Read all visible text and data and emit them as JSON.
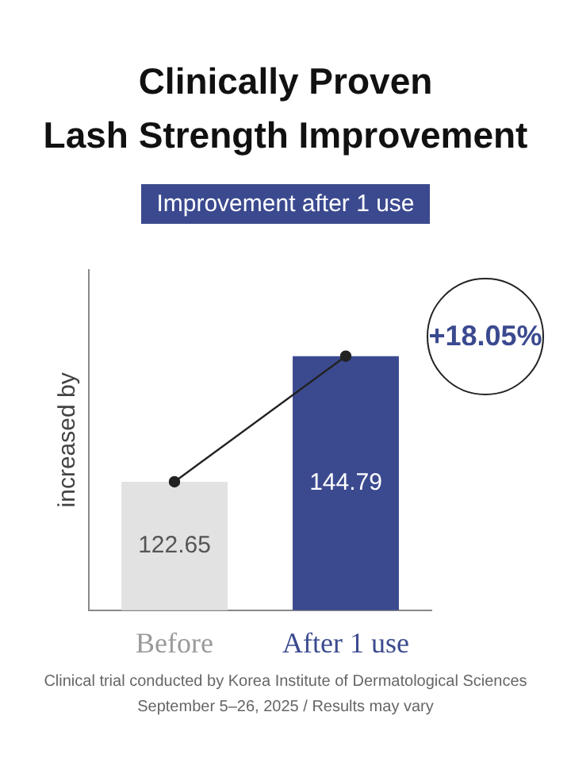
{
  "chart_data": {
    "type": "bar",
    "title": "Clinically Proven\nLash Strength Improvement",
    "subtitle": "Improvement after 1 use",
    "ylabel": "increased by",
    "categories": [
      "Before",
      "After 1 use"
    ],
    "series": [
      {
        "colors": [
          "#e2e2e2",
          "#3b4a8f"
        ],
        "values": [
          122.65,
          144.79
        ],
        "value_labels": [
          "122.65",
          "144.79"
        ]
      },
      {
        "type": "line",
        "color": "#222222",
        "values": [
          122.65,
          144.79
        ]
      }
    ],
    "marker": "circle",
    "legend": false,
    "tick_labels": "x",
    "annotations": [
      "+18.05%",
      "Clinical trial conducted by Korea Institute of Dermatological Sciences",
      "September 5–26, 2025 / Results may vary"
    ]
  }
}
